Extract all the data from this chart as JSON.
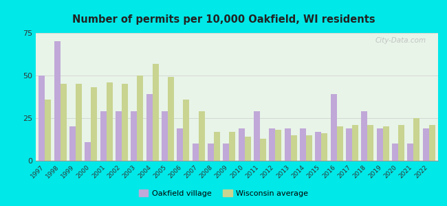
{
  "title": "Number of permits per 10,000 Oakfield, WI residents",
  "years": [
    1997,
    1998,
    1999,
    2000,
    2001,
    2002,
    2003,
    2004,
    2005,
    2006,
    2007,
    2008,
    2009,
    2010,
    2011,
    2012,
    2013,
    2014,
    2015,
    2016,
    2017,
    2018,
    2019,
    2020,
    2021,
    2022
  ],
  "oakfield": [
    50,
    70,
    20,
    11,
    29,
    29,
    29,
    39,
    29,
    19,
    10,
    10,
    10,
    19,
    29,
    19,
    19,
    19,
    17,
    39,
    19,
    29,
    19,
    10,
    10,
    19
  ],
  "wisconsin": [
    36,
    45,
    45,
    43,
    46,
    45,
    50,
    57,
    49,
    36,
    29,
    17,
    17,
    14,
    13,
    18,
    15,
    15,
    16,
    20,
    21,
    21,
    20,
    21,
    25,
    21
  ],
  "bar_color_oakfield": "#c0a8d8",
  "bar_color_wisconsin": "#c8d490",
  "background_outer": "#00e8e8",
  "background_plot": "#e8f4e8",
  "ylim": [
    0,
    75
  ],
  "yticks": [
    0,
    25,
    50,
    75
  ],
  "legend_label_oakfield": "Oakfield village",
  "legend_label_wisconsin": "Wisconsin average",
  "watermark": "City-Data.com"
}
